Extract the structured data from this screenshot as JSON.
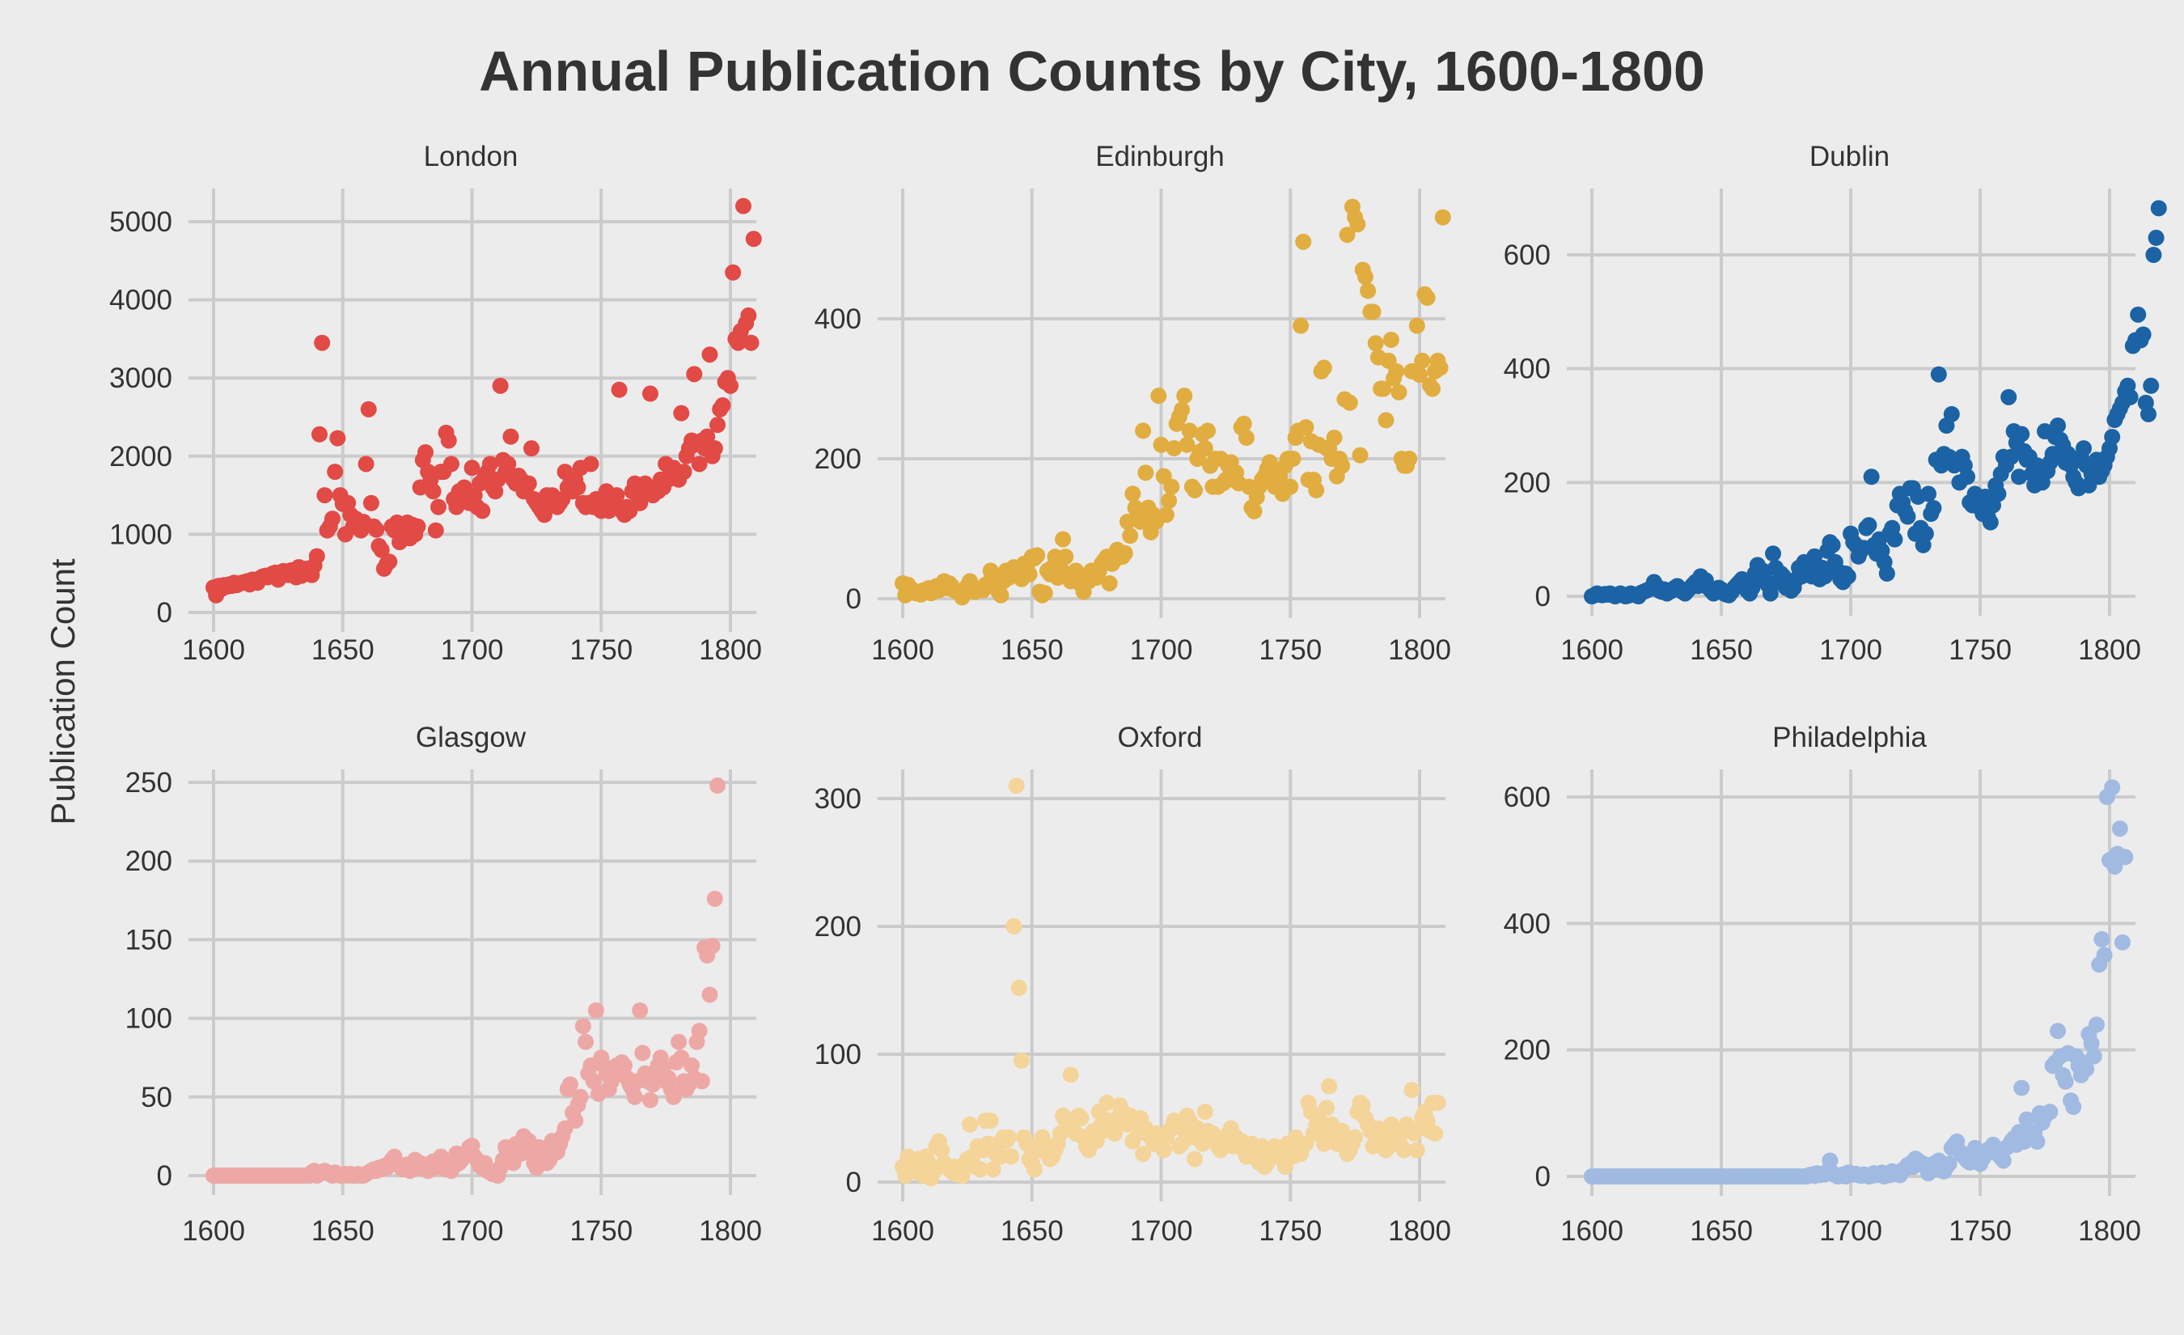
{
  "chart_data": {
    "type": "scatter",
    "title": "Annual Publication Counts by City, 1600-1800",
    "ylabel": "Publication Count",
    "xlabel": "",
    "grid": true,
    "legend": "none",
    "x_start": 1600,
    "x_step": 1,
    "xlim": [
      1600,
      1800
    ],
    "xticks": [
      1600,
      1650,
      1700,
      1750,
      1800
    ],
    "panels": [
      {
        "name": "London",
        "color": "#e24a46",
        "ylim": [
          0,
          5000
        ],
        "yticks": [
          0,
          1000,
          2000,
          3000,
          4000,
          5000
        ],
        "values": [
          320,
          220,
          340,
          300,
          350,
          330,
          360,
          340,
          380,
          350,
          370,
          380,
          390,
          400,
          360,
          420,
          410,
          380,
          440,
          460,
          470,
          450,
          480,
          500,
          510,
          420,
          470,
          530,
          520,
          480,
          540,
          500,
          450,
          580,
          470,
          520,
          560,
          500,
          480,
          600,
          720,
          2280,
          3450,
          1500,
          1050,
          1100,
          1200,
          1800,
          2230,
          1500,
          1390,
          1000,
          1400,
          1250,
          1100,
          1200,
          1100,
          1050,
          1160,
          1900,
          2600,
          1400,
          1100,
          1060,
          850,
          800,
          560,
          620,
          650,
          1100,
          1050,
          1150,
          900,
          1000,
          1050,
          1150,
          950,
          1120,
          1000,
          1100,
          1600,
          1950,
          2050,
          1800,
          1700,
          1550,
          1050,
          1350,
          1800,
          1800,
          2300,
          2200,
          1900,
          1450,
          1350,
          1550,
          1500,
          1600,
          1450,
          1400,
          1850,
          1500,
          1350,
          1650,
          1300,
          1750,
          1800,
          1900,
          1600,
          1550,
          1700,
          2900,
          1950,
          1800,
          1900,
          2250,
          1700,
          1650,
          1750,
          1700,
          1550,
          1600,
          1650,
          2100,
          1450,
          1400,
          1350,
          1300,
          1250,
          1500,
          1450,
          1500,
          1400,
          1350,
          1400,
          1450,
          1800,
          1600,
          1650,
          1550,
          1700,
          1600,
          1850,
          1400,
          1350,
          1400,
          1900,
          1350,
          1450,
          1350,
          1300,
          1400,
          1550,
          1300,
          1450,
          1400,
          1500,
          2850,
          1300,
          1250,
          1350,
          1300,
          1550,
          1650,
          1500,
          1400,
          1550,
          1650,
          1600,
          2800,
          1500,
          1600,
          1550,
          1700,
          1600,
          1900,
          1700,
          1800,
          1850,
          1750,
          1700,
          2550,
          1800,
          2000,
          2100,
          2200,
          3050,
          2150,
          1900,
          2200,
          2100,
          2250,
          3300,
          2000,
          2100,
          2400,
          2600,
          2650,
          2950,
          3000,
          2900,
          4350,
          3500,
          3450,
          3600,
          5200,
          3700,
          3800,
          3450,
          4780
        ]
      },
      {
        "name": "Edinburgh",
        "color": "#e1ad40",
        "ylim": [
          0,
          560
        ],
        "yticks": [
          0,
          200,
          400
        ],
        "values": [
          22,
          5,
          20,
          15,
          12,
          8,
          10,
          6,
          12,
          10,
          15,
          8,
          14,
          18,
          12,
          20,
          25,
          15,
          22,
          18,
          12,
          10,
          8,
          2,
          12,
          18,
          25,
          15,
          10,
          12,
          14,
          12,
          20,
          22,
          40,
          30,
          18,
          10,
          5,
          25,
          40,
          30,
          35,
          45,
          40,
          35,
          28,
          50,
          45,
          35,
          60,
          58,
          62,
          10,
          5,
          8,
          40,
          35,
          45,
          60,
          30,
          45,
          85,
          60,
          35,
          25,
          30,
          40,
          35,
          20,
          10,
          30,
          25,
          40,
          35,
          30,
          40,
          50,
          55,
          60,
          22,
          50,
          55,
          70,
          65,
          60,
          65,
          110,
          90,
          150,
          130,
          120,
          110,
          240,
          180,
          130,
          95,
          120,
          110,
          290,
          220,
          175,
          120,
          140,
          160,
          215,
          250,
          260,
          270,
          290,
          220,
          240,
          160,
          155,
          200,
          210,
          235,
          215,
          240,
          190,
          160,
          200,
          160,
          200,
          165,
          170,
          190,
          195,
          170,
          180,
          165,
          245,
          250,
          230,
          160,
          130,
          125,
          145,
          160,
          170,
          175,
          185,
          195,
          170,
          160,
          180,
          175,
          150,
          190,
          200,
          160,
          200,
          230,
          240,
          390,
          510,
          245,
          170,
          225,
          170,
          155,
          220,
          325,
          330,
          215,
          215,
          200,
          230,
          175,
          200,
          190,
          285,
          520,
          280,
          560,
          545,
          535,
          205,
          470,
          460,
          440,
          410,
          410,
          365,
          345,
          300,
          300,
          255,
          340,
          370,
          315,
          325,
          295,
          200,
          190,
          190,
          200,
          325,
          325,
          390,
          320,
          340,
          435,
          430,
          305,
          300,
          325,
          340,
          330,
          545
        ]
      },
      {
        "name": "Dublin",
        "color": "#1c63a5",
        "ylim": [
          -30,
          700
        ],
        "yticks": [
          0,
          200,
          400,
          600
        ],
        "values": [
          0,
          2,
          5,
          3,
          2,
          4,
          3,
          5,
          2,
          0,
          3,
          5,
          2,
          0,
          1,
          5,
          3,
          2,
          0,
          6,
          8,
          10,
          12,
          15,
          25,
          18,
          10,
          8,
          12,
          5,
          8,
          10,
          15,
          18,
          12,
          8,
          5,
          10,
          15,
          20,
          25,
          18,
          35,
          20,
          28,
          15,
          10,
          5,
          8,
          15,
          12,
          5,
          3,
          2,
          8,
          15,
          20,
          25,
          30,
          20,
          10,
          5,
          15,
          40,
          55,
          35,
          45,
          30,
          20,
          5,
          75,
          50,
          25,
          40,
          35,
          15,
          20,
          10,
          15,
          30,
          50,
          35,
          60,
          55,
          45,
          35,
          70,
          45,
          30,
          50,
          35,
          80,
          95,
          90,
          60,
          45,
          30,
          25,
          40,
          35,
          110,
          95,
          90,
          70,
          80,
          85,
          120,
          125,
          210,
          90,
          75,
          100,
          80,
          60,
          40,
          110,
          120,
          100,
          160,
          180,
          165,
          150,
          140,
          190,
          190,
          110,
          175,
          120,
          90,
          110,
          180,
          145,
          155,
          240,
          390,
          230,
          250,
          300,
          245,
          320,
          230,
          240,
          200,
          245,
          230,
          210,
          165,
          160,
          180,
          170,
          155,
          145,
          175,
          140,
          130,
          160,
          195,
          180,
          215,
          245,
          230,
          350,
          245,
          290,
          270,
          210,
          285,
          255,
          240,
          245,
          215,
          195,
          230,
          220,
          200,
          290,
          220,
          235,
          250,
          280,
          300,
          275,
          265,
          235,
          250,
          230,
          210,
          200,
          190,
          245,
          260,
          230,
          195,
          215,
          230,
          240,
          210,
          220,
          230,
          245,
          260,
          280,
          310,
          320,
          330,
          340,
          360,
          370,
          350,
          440,
          450,
          495,
          450,
          460,
          340,
          320,
          370,
          600,
          630,
          682
        ]
      },
      {
        "name": "Glasgow",
        "color": "#eda8a6",
        "ylim": [
          -12,
          260
        ],
        "yticks": [
          0,
          50,
          100,
          150,
          200,
          250
        ],
        "values": [
          0,
          0,
          0,
          0,
          0,
          0,
          0,
          0,
          0,
          0,
          0,
          0,
          0,
          0,
          0,
          0,
          0,
          0,
          0,
          0,
          0,
          0,
          0,
          0,
          0,
          0,
          0,
          0,
          0,
          0,
          0,
          0,
          0,
          0,
          0,
          0,
          0,
          0,
          2,
          3,
          0,
          1,
          2,
          3,
          2,
          1,
          0,
          2,
          1,
          0,
          0,
          1,
          0,
          1,
          0,
          0,
          1,
          0,
          0,
          1,
          2,
          3,
          4,
          3,
          5,
          4,
          6,
          5,
          8,
          10,
          12,
          8,
          6,
          4,
          5,
          7,
          3,
          6,
          10,
          5,
          8,
          7,
          4,
          3,
          6,
          9,
          5,
          10,
          12,
          8,
          4,
          5,
          3,
          6,
          14,
          8,
          10,
          12,
          15,
          18,
          19,
          12,
          10,
          6,
          5,
          8,
          3,
          2,
          1,
          2,
          0,
          5,
          10,
          18,
          12,
          15,
          8,
          20,
          18,
          14,
          25,
          20,
          22,
          15,
          8,
          5,
          18,
          12,
          10,
          8,
          10,
          22,
          18,
          15,
          20,
          25,
          30,
          55,
          58,
          40,
          35,
          45,
          50,
          95,
          85,
          65,
          70,
          60,
          105,
          52,
          75,
          70,
          65,
          55,
          60,
          68,
          70,
          65,
          72,
          70,
          62,
          58,
          55,
          50,
          60,
          105,
          78,
          65,
          60,
          48,
          58,
          65,
          70,
          75,
          68,
          60,
          62,
          55,
          50,
          72,
          85,
          75,
          60,
          55,
          58,
          70,
          62,
          85,
          92,
          60,
          145,
          140,
          115,
          146,
          176,
          248
        ]
      },
      {
        "name": "Oxford",
        "color": "#f4d499",
        "ylim": [
          -5,
          322
        ],
        "yticks": [
          0,
          100,
          200,
          300
        ],
        "values": [
          12,
          5,
          20,
          15,
          10,
          8,
          18,
          12,
          5,
          20,
          15,
          3,
          8,
          28,
          32,
          25,
          15,
          12,
          10,
          8,
          12,
          6,
          10,
          5,
          14,
          18,
          45,
          20,
          12,
          28,
          10,
          25,
          48,
          30,
          48,
          10,
          22,
          30,
          20,
          35,
          32,
          35,
          20,
          200,
          310,
          152,
          95,
          35,
          30,
          18,
          15,
          10,
          28,
          25,
          35,
          30,
          22,
          18,
          20,
          25,
          30,
          38,
          52,
          48,
          45,
          84,
          40,
          38,
          52,
          50,
          35,
          28,
          25,
          38,
          40,
          32,
          55,
          45,
          40,
          62,
          48,
          42,
          38,
          50,
          60,
          55,
          48,
          45,
          52,
          32,
          48,
          38,
          50,
          22,
          42,
          38,
          35,
          30,
          38,
          32,
          28,
          25,
          35,
          40,
          42,
          48,
          45,
          28,
          30,
          40,
          52,
          48,
          35,
          18,
          42,
          38,
          30,
          55,
          40,
          35,
          38,
          32,
          28,
          25,
          30,
          35,
          38,
          42,
          28,
          35,
          30,
          32,
          25,
          20,
          28,
          30,
          22,
          18,
          15,
          28,
          12,
          15,
          20,
          22,
          28,
          20,
          25,
          18,
          12,
          30,
          25,
          20,
          35,
          28,
          22,
          28,
          30,
          62,
          55,
          38,
          45,
          50,
          40,
          30,
          58,
          75,
          45,
          35,
          30,
          38,
          40,
          28,
          22,
          25,
          30,
          35,
          55,
          62,
          60,
          50,
          45,
          40,
          28,
          35,
          42,
          38,
          30,
          25,
          40,
          45,
          38,
          30,
          35,
          28,
          25,
          45,
          40,
          72,
          38,
          25,
          42,
          50,
          55,
          48,
          40,
          62,
          38,
          62
        ]
      },
      {
        "name": "Philadelphia",
        "color": "#a0bae2",
        "ylim": [
          -30,
          640
        ],
        "yticks": [
          0,
          200,
          400,
          600
        ],
        "values": [
          0,
          0,
          0,
          0,
          0,
          0,
          0,
          0,
          0,
          0,
          0,
          0,
          0,
          0,
          0,
          0,
          0,
          0,
          0,
          0,
          0,
          0,
          0,
          0,
          0,
          0,
          0,
          0,
          0,
          0,
          0,
          0,
          0,
          0,
          0,
          0,
          0,
          0,
          0,
          0,
          0,
          0,
          0,
          0,
          0,
          0,
          0,
          0,
          0,
          0,
          0,
          0,
          0,
          0,
          0,
          0,
          0,
          0,
          0,
          0,
          0,
          0,
          0,
          0,
          0,
          0,
          0,
          0,
          0,
          0,
          0,
          0,
          0,
          0,
          0,
          0,
          0,
          0,
          0,
          0,
          0,
          0,
          0,
          0,
          2,
          3,
          1,
          5,
          2,
          4,
          3,
          8,
          25,
          5,
          2,
          0,
          1,
          3,
          0,
          6,
          5,
          3,
          4,
          2,
          1,
          3,
          2,
          0,
          1,
          5,
          2,
          3,
          6,
          0,
          4,
          2,
          8,
          5,
          3,
          2,
          10,
          12,
          18,
          20,
          15,
          28,
          25,
          22,
          20,
          15,
          5,
          18,
          20,
          12,
          25,
          10,
          8,
          15,
          20,
          45,
          50,
          55,
          40,
          35,
          30,
          25,
          22,
          35,
          45,
          30,
          20,
          28,
          35,
          42,
          38,
          50,
          40,
          35,
          30,
          25,
          45,
          48,
          55,
          60,
          50,
          70,
          140,
          55,
          90,
          65,
          60,
          70,
          55,
          100,
          85,
          95,
          100,
          102,
          175,
          180,
          230,
          190,
          160,
          150,
          195,
          120,
          110,
          190,
          175,
          160,
          180,
          170,
          225,
          210,
          190,
          240,
          335,
          375,
          350,
          600,
          500,
          615,
          490,
          510,
          550,
          370,
          505
        ]
      }
    ]
  }
}
